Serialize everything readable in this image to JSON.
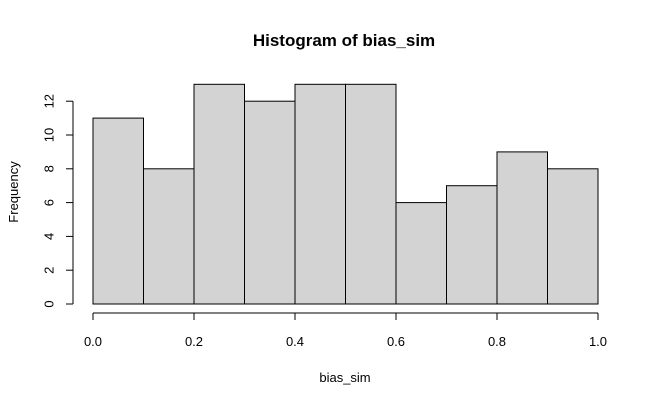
{
  "chart_data": {
    "type": "bar",
    "title": "Histogram of bias_sim",
    "xlabel": "bias_sim",
    "ylabel": "Frequency",
    "bins": [
      {
        "from": 0.0,
        "to": 0.1,
        "count": 11
      },
      {
        "from": 0.1,
        "to": 0.2,
        "count": 8
      },
      {
        "from": 0.2,
        "to": 0.3,
        "count": 13
      },
      {
        "from": 0.3,
        "to": 0.4,
        "count": 12
      },
      {
        "from": 0.4,
        "to": 0.5,
        "count": 13
      },
      {
        "from": 0.5,
        "to": 0.6,
        "count": 13
      },
      {
        "from": 0.6,
        "to": 0.7,
        "count": 6
      },
      {
        "from": 0.7,
        "to": 0.8,
        "count": 7
      },
      {
        "from": 0.8,
        "to": 0.9,
        "count": 9
      },
      {
        "from": 0.9,
        "to": 1.0,
        "count": 8
      }
    ],
    "xlim": [
      0,
      1
    ],
    "ylim": [
      0,
      12
    ],
    "x_ticks": [
      0.0,
      0.2,
      0.4,
      0.6,
      0.8,
      1.0
    ],
    "x_tick_labels": [
      "0.0",
      "0.2",
      "0.4",
      "0.6",
      "0.8",
      "1.0"
    ],
    "y_ticks": [
      0,
      2,
      4,
      6,
      8,
      10,
      12
    ],
    "y_tick_labels": [
      "0",
      "2",
      "4",
      "6",
      "8",
      "10",
      "12"
    ],
    "grid": false,
    "legend": "none",
    "bar_fill": "#d3d3d3",
    "bar_stroke": "#000000"
  }
}
